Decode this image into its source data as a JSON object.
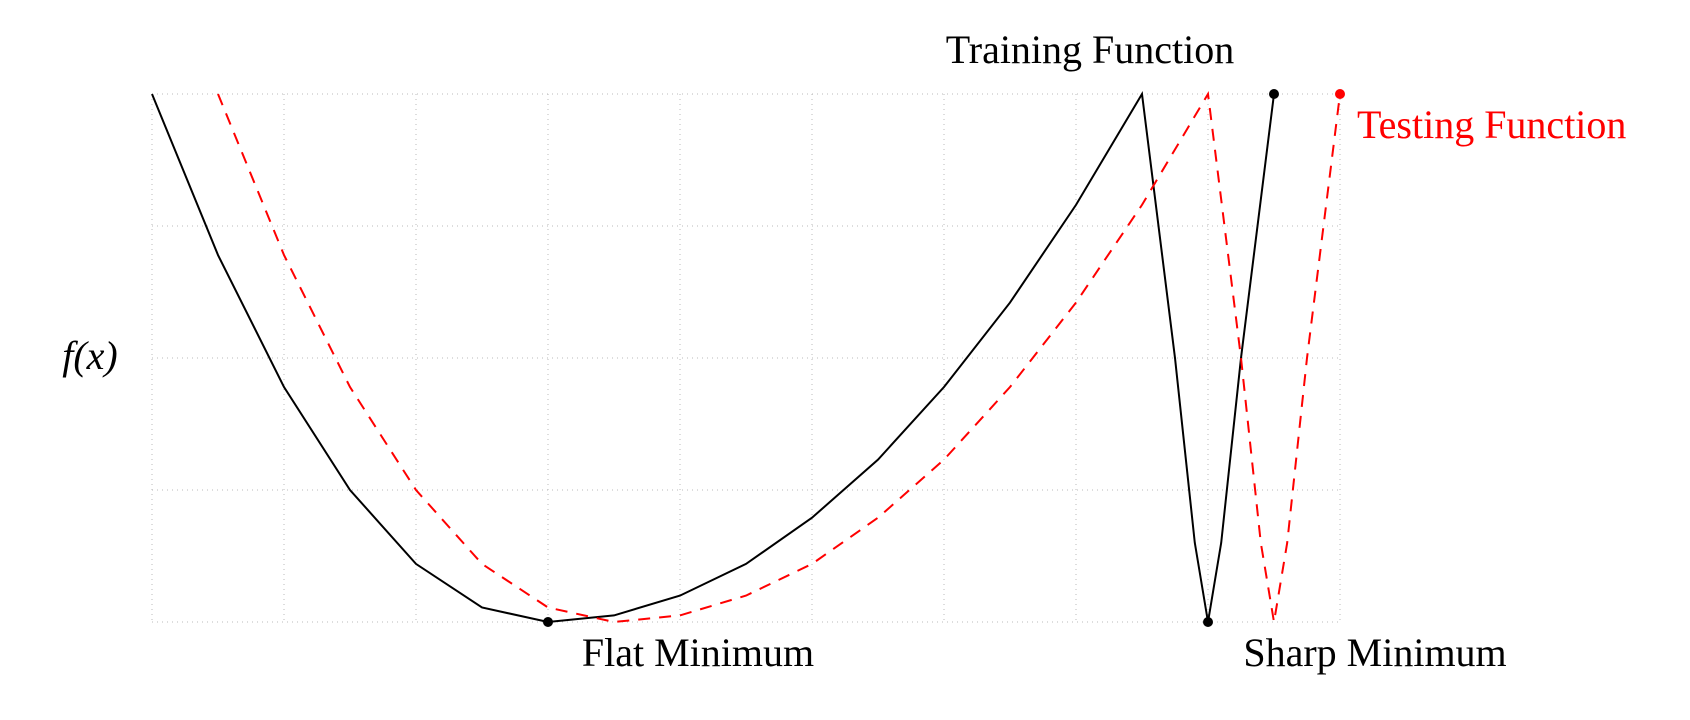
{
  "chart_data": {
    "type": "line",
    "y_label": "f(x)",
    "xlim": [
      0,
      9
    ],
    "ylim": [
      0,
      4
    ],
    "xticks": [
      0,
      1,
      2,
      3,
      4,
      5,
      6,
      7,
      8,
      9
    ],
    "yticks": [
      0,
      1,
      2,
      3,
      4
    ],
    "grid": true,
    "series": [
      {
        "name": "Training Function",
        "color": "#000000",
        "dashed": false,
        "x": [
          0,
          0.5,
          1,
          1.5,
          2,
          2.5,
          3,
          3.5,
          4,
          4.5,
          5,
          5.5,
          6,
          6.5,
          7,
          7.5,
          7.75,
          7.9,
          8,
          8.1,
          8.25,
          8.5
        ],
        "values": [
          4,
          2.78,
          1.78,
          1,
          0.44,
          0.11,
          0,
          0.05,
          0.2,
          0.44,
          0.79,
          1.23,
          1.78,
          2.42,
          3.16,
          4,
          2,
          0.6,
          0,
          0.6,
          2,
          4
        ]
      },
      {
        "name": "Testing Function",
        "color": "#ff0000",
        "dashed": true,
        "x": [
          0.5,
          1,
          1.5,
          2,
          2.5,
          3,
          3.5,
          4,
          4.5,
          5,
          5.5,
          6,
          6.5,
          7,
          7.5,
          8,
          8.25,
          8.4,
          8.5,
          8.6,
          8.75,
          9
        ],
        "values": [
          4,
          2.78,
          1.78,
          1,
          0.44,
          0.11,
          0,
          0.05,
          0.2,
          0.44,
          0.79,
          1.23,
          1.78,
          2.42,
          3.16,
          4,
          2,
          0.6,
          0,
          0.6,
          2,
          4
        ]
      }
    ],
    "markers": [
      {
        "x": 3,
        "y": 0,
        "color": "#000000"
      },
      {
        "x": 8,
        "y": 0,
        "color": "#000000"
      },
      {
        "x": 8.5,
        "y": 4,
        "color": "#000000"
      },
      {
        "x": 9,
        "y": 4,
        "color": "#ff0000"
      }
    ],
    "annotations": [
      "Flat Minimum",
      "Sharp Minimum"
    ]
  }
}
